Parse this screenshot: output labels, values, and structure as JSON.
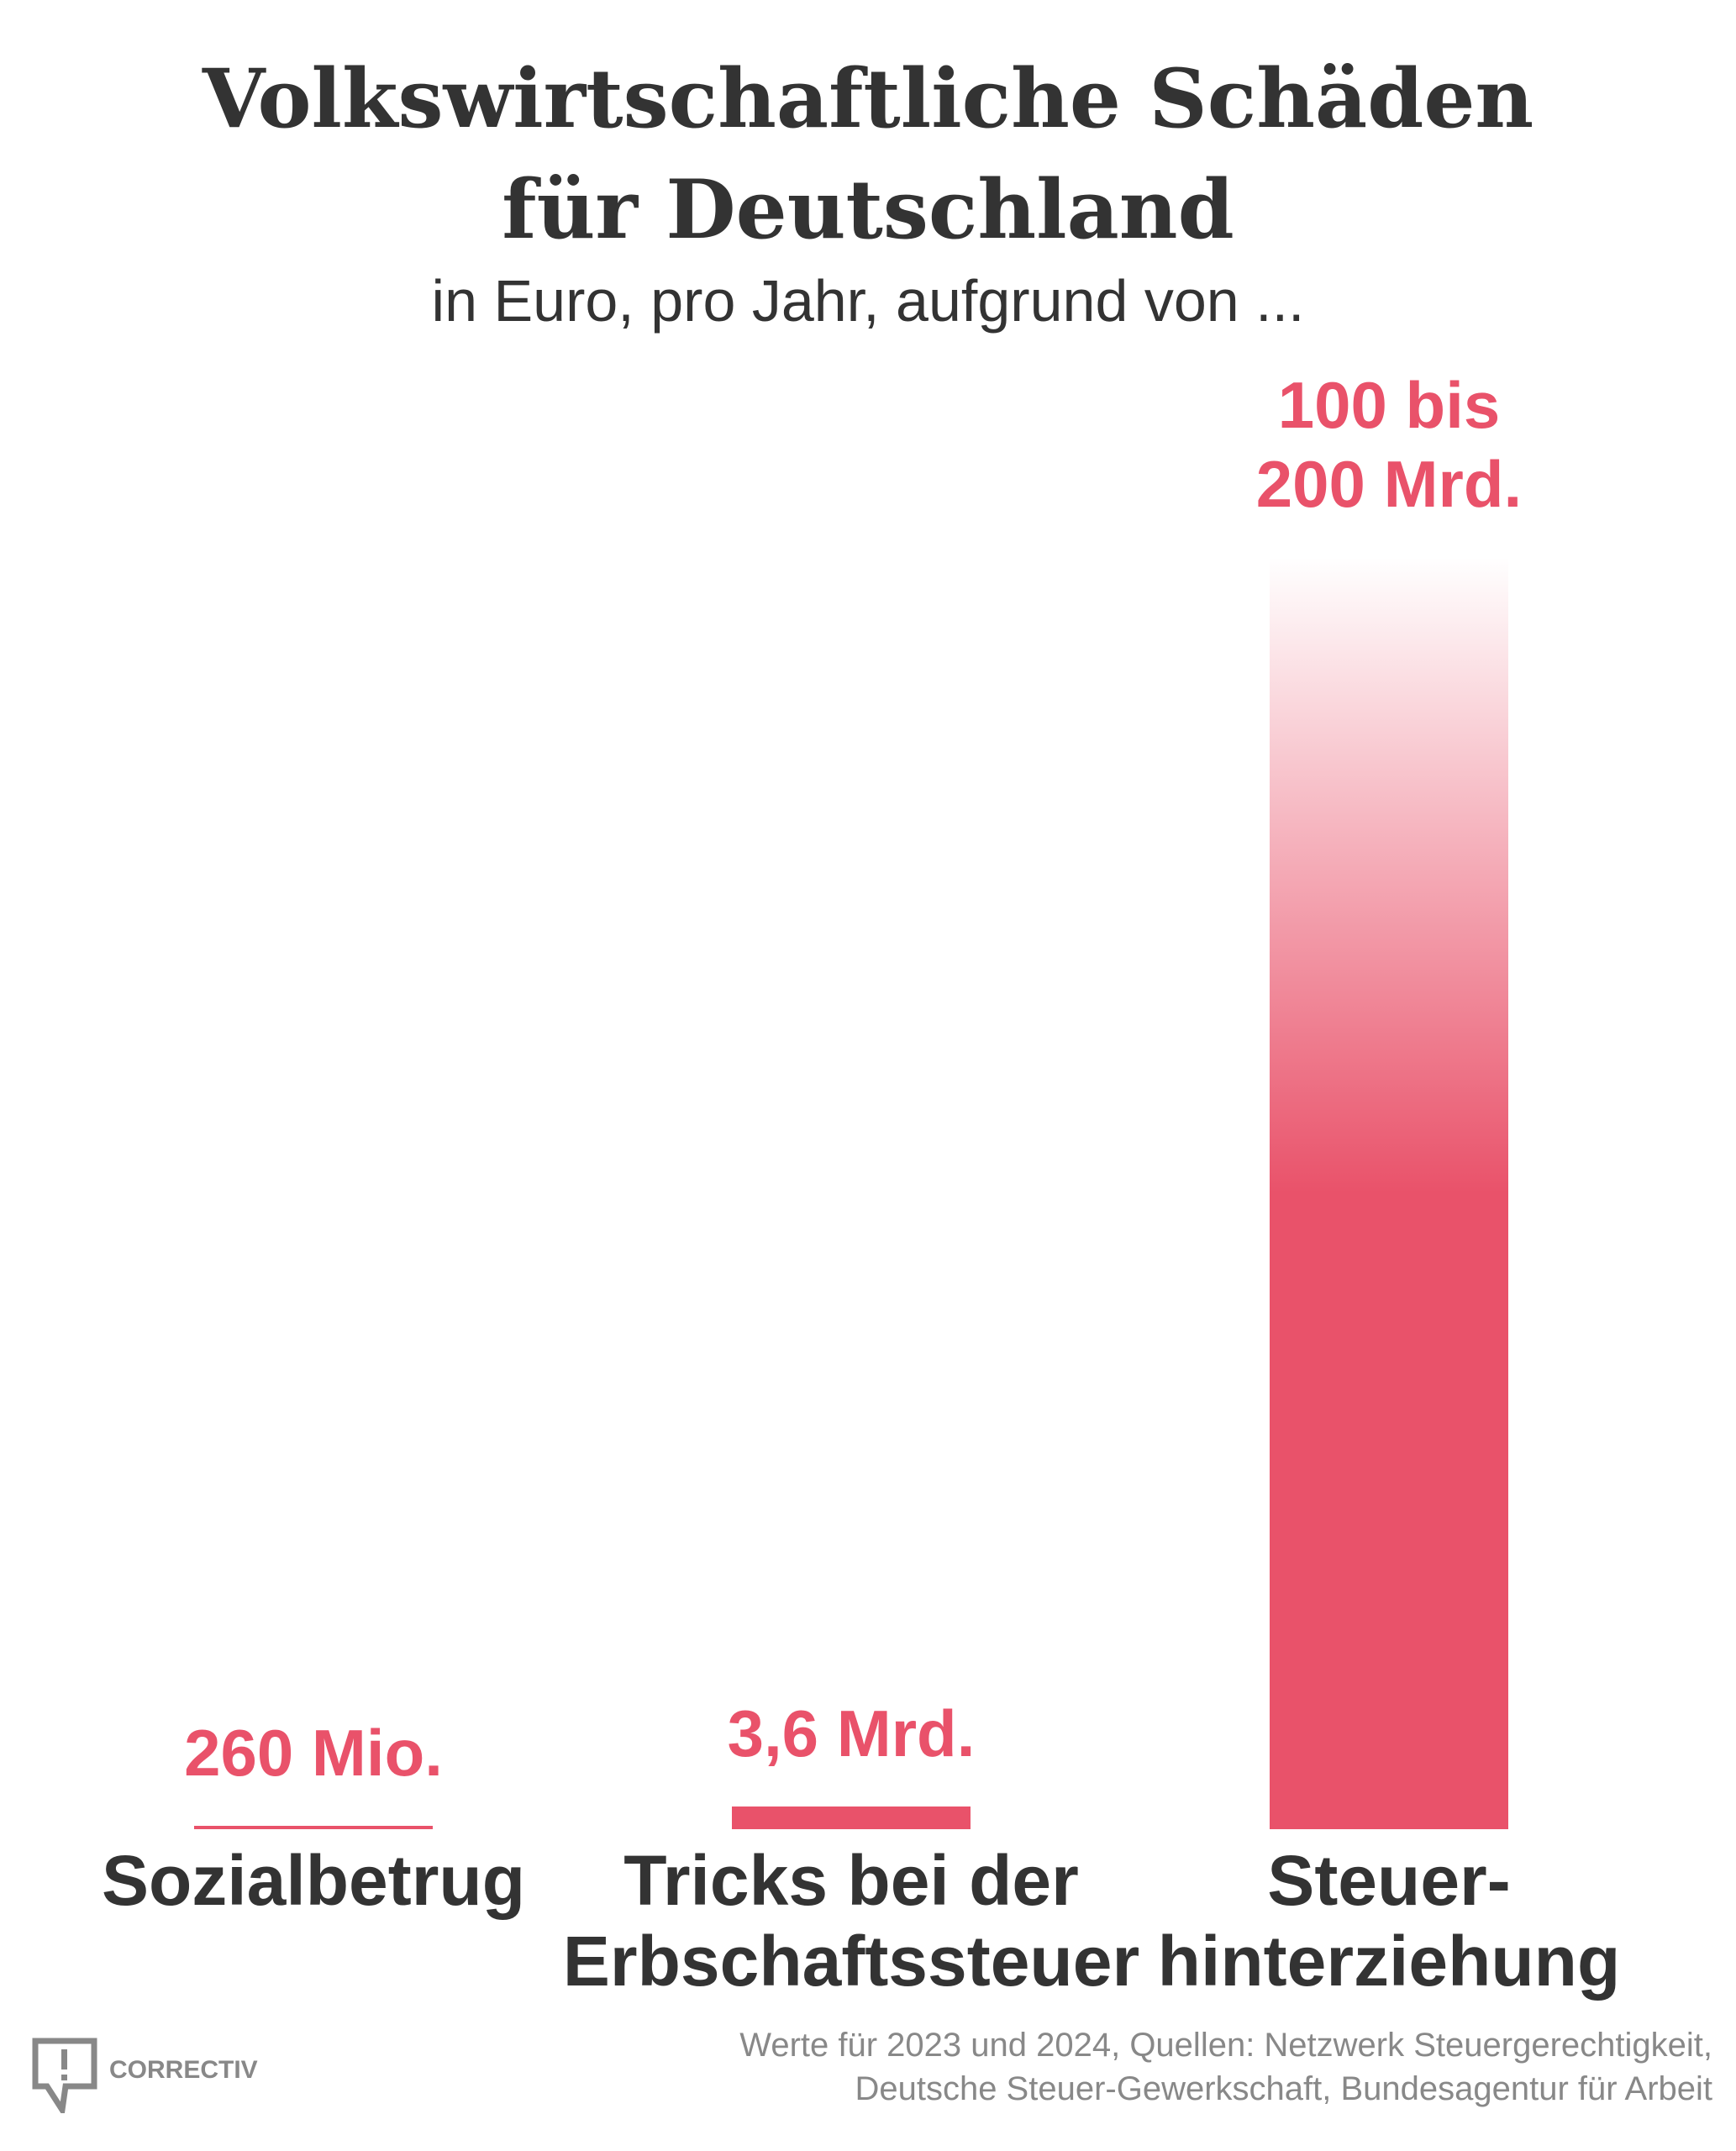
{
  "title_line1": "Volkswirtschaftliche Schäden",
  "title_line2": "für Deutschland",
  "subtitle": "in Euro, pro Jahr, aufgrund von ...",
  "footer_line1": "Werte für 2023 und 2024, Quellen: Netzwerk Steuergerechtigkeit,",
  "footer_line2": "Deutsche Steuer-Gewerkschaft, Bundesagentur für Arbeit",
  "logo": "CORRECTIV",
  "colors": {
    "bar": "#e9526a",
    "text": "#333333",
    "footer": "#888888"
  },
  "chart_data": {
    "type": "bar",
    "title": "Volkswirtschaftliche Schäden für Deutschland",
    "subtitle": "in Euro, pro Jahr, aufgrund von ...",
    "unit": "Mrd. Euro",
    "categories": [
      "Sozialbetrug",
      "Tricks bei der Erbschaftssteuer",
      "Steuerhinterziehung"
    ],
    "category_lines": [
      [
        "Sozialbetrug"
      ],
      [
        "Tricks bei der",
        "Erbschaftssteuer"
      ],
      [
        "Steuer-",
        "hinterziehung"
      ]
    ],
    "values": [
      0.26,
      3.6,
      100
    ],
    "range_max": [
      null,
      null,
      200
    ],
    "value_labels": [
      [
        "260 Mio."
      ],
      [
        "3,6 Mrd."
      ],
      [
        "100 bis",
        "200 Mrd."
      ]
    ],
    "ylim": [
      0,
      200
    ],
    "grid": false
  }
}
